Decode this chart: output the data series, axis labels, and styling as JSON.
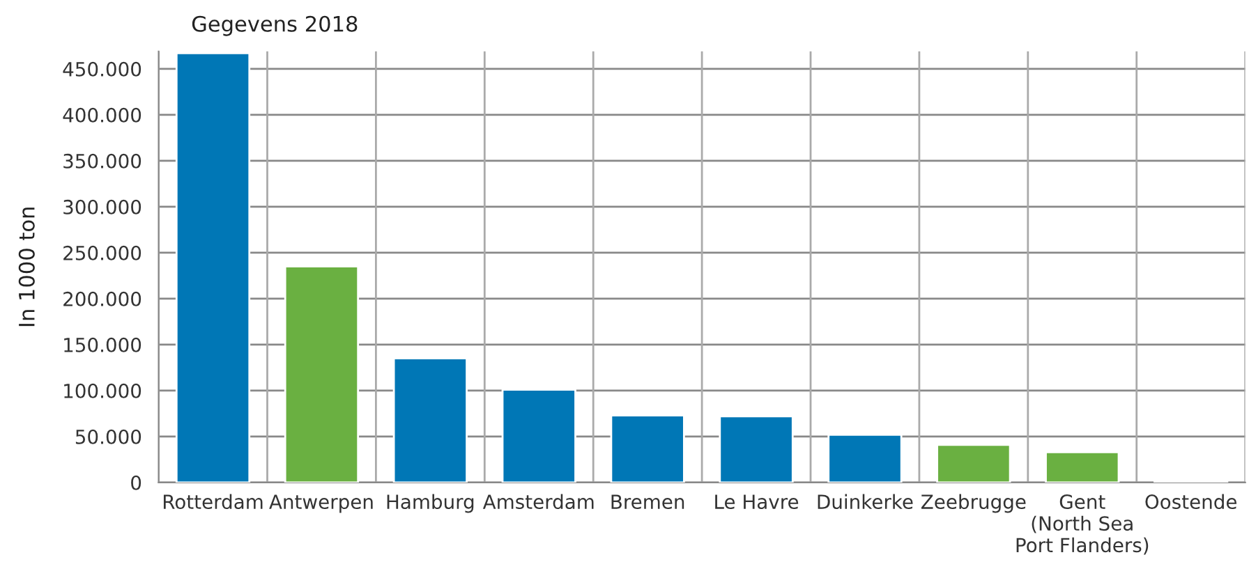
{
  "chart_data": {
    "type": "bar",
    "title": "Gegevens 2018",
    "ylabel": "In 1000 ton",
    "categories": [
      "Rotterdam",
      "Antwerpen",
      "Hamburg",
      "Amsterdam",
      "Bremen",
      "Le Havre",
      "Duinkerke",
      "Zeebrugge",
      "Gent\n(North Sea\nPort Flanders)",
      "Oostende"
    ],
    "values": [
      467000,
      235000,
      135000,
      101000,
      73000,
      72000,
      52000,
      41000,
      33000,
      2000
    ],
    "colors": [
      "#0077b6",
      "#6ab041",
      "#0077b6",
      "#0077b6",
      "#0077b6",
      "#0077b6",
      "#0077b6",
      "#6ab041",
      "#6ab041",
      "#6ab041"
    ],
    "ylim": [
      0,
      469000
    ],
    "yticks": [
      0,
      {
        "value": 50000,
        "label": "50.000"
      },
      {
        "value": 100000,
        "label": "100.000"
      },
      {
        "value": 150000,
        "label": "150.000"
      },
      {
        "value": 200000,
        "label": "200.000"
      },
      {
        "value": 250000,
        "label": "250.000"
      },
      {
        "value": 300000,
        "label": "300.000"
      },
      {
        "value": 350000,
        "label": "350.000"
      },
      {
        "value": 400000,
        "label": "400.000"
      },
      {
        "value": 450000,
        "label": "450.000"
      }
    ],
    "grid": true
  }
}
